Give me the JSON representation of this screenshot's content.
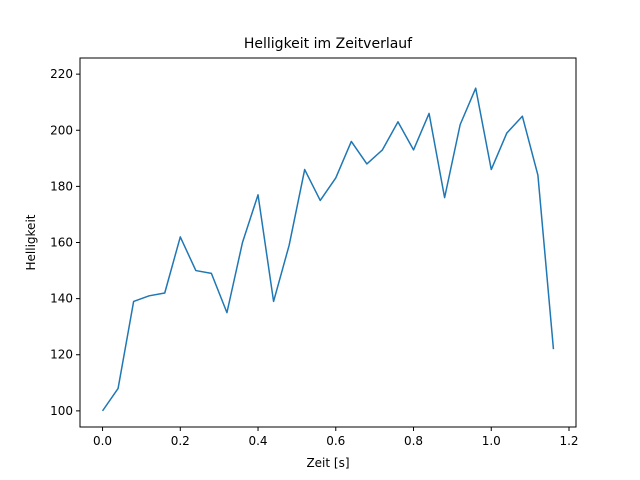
{
  "chart_data": {
    "type": "line",
    "title": "Helligkeit im Zeitverlauf",
    "xlabel": "Zeit [s]",
    "ylabel": "Helligkeit",
    "xlim": [
      -0.058,
      1.218
    ],
    "ylim": [
      94.25,
      225.75
    ],
    "xticks": [
      0.0,
      0.2,
      0.4,
      0.6,
      0.8,
      1.0,
      1.2
    ],
    "xtick_labels": [
      "0.0",
      "0.2",
      "0.4",
      "0.6",
      "0.8",
      "1.0",
      "1.2"
    ],
    "yticks": [
      100,
      120,
      140,
      160,
      180,
      200,
      220
    ],
    "ytick_labels": [
      "100",
      "120",
      "140",
      "160",
      "180",
      "200",
      "220"
    ],
    "grid": false,
    "series": [
      {
        "name": "Helligkeit",
        "color": "#1f77b4",
        "x": [
          0.0,
          0.04,
          0.08,
          0.12,
          0.16,
          0.2,
          0.24,
          0.28,
          0.32,
          0.36,
          0.4,
          0.44,
          0.48,
          0.52,
          0.56,
          0.6,
          0.64,
          0.68,
          0.72,
          0.76,
          0.8,
          0.84,
          0.88,
          0.92,
          0.96,
          1.0,
          1.04,
          1.08,
          1.12,
          1.16
        ],
        "y": [
          100,
          108,
          139,
          141,
          142,
          162,
          150,
          149,
          135,
          160,
          177,
          139,
          159,
          186,
          175,
          183,
          196,
          188,
          193,
          203,
          193,
          206,
          176,
          202,
          215,
          186,
          199,
          205,
          184,
          122
        ]
      }
    ]
  }
}
